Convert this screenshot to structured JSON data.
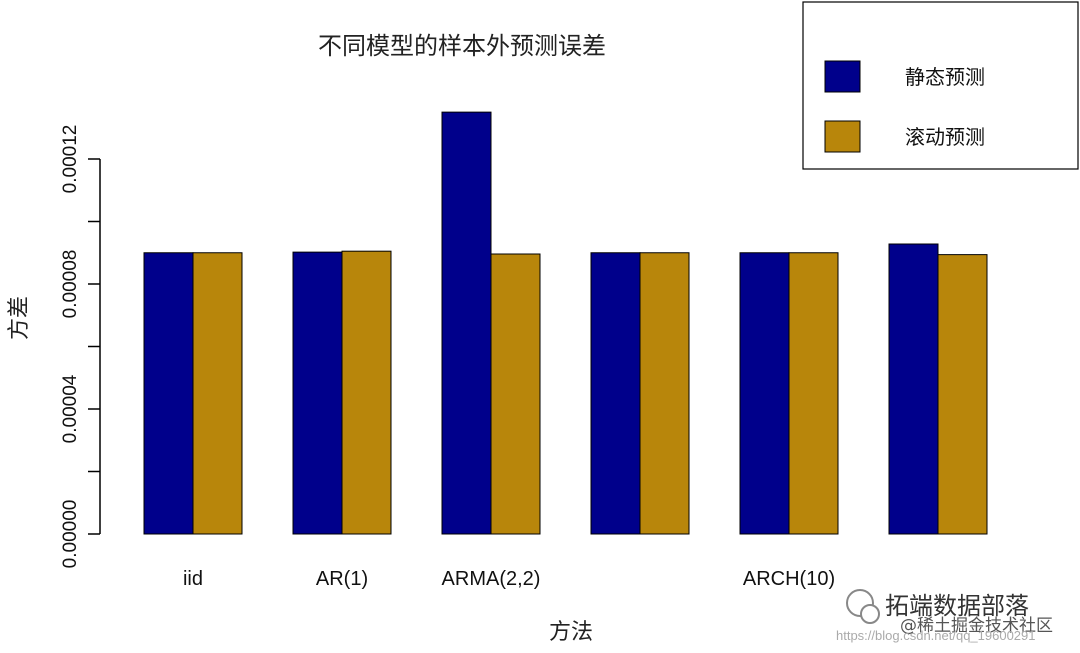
{
  "colors": {
    "static": "#00008B",
    "rolling": "#B8860B"
  },
  "chart_data": {
    "type": "bar",
    "title": "不同模型的样本外预测误差",
    "xlabel": "方法",
    "ylabel": "方差",
    "categories": [
      "iid",
      "AR(1)",
      "ARMA(2,2)",
      "",
      "ARCH(10)",
      ""
    ],
    "series": [
      {
        "name": "静态预测",
        "color": "#00008B",
        "values": [
          9e-05,
          9.02e-05,
          0.000135,
          9e-05,
          9e-05,
          9.28e-05
        ]
      },
      {
        "name": "滚动预测",
        "color": "#B8860B",
        "values": [
          9e-05,
          9.05e-05,
          8.96e-05,
          9e-05,
          9e-05,
          8.94e-05
        ]
      }
    ],
    "ylim": [
      0,
      0.00012
    ],
    "yticks": [
      "0.00000",
      "0.00004",
      "0.00008",
      "0.00012"
    ],
    "legend_position": "top-right",
    "grid": false
  },
  "watermark": {
    "brand": "拓端数据部落",
    "community": "@稀土掘金技术社区",
    "url": "https://blog.csdn.net/qq_19600291"
  }
}
